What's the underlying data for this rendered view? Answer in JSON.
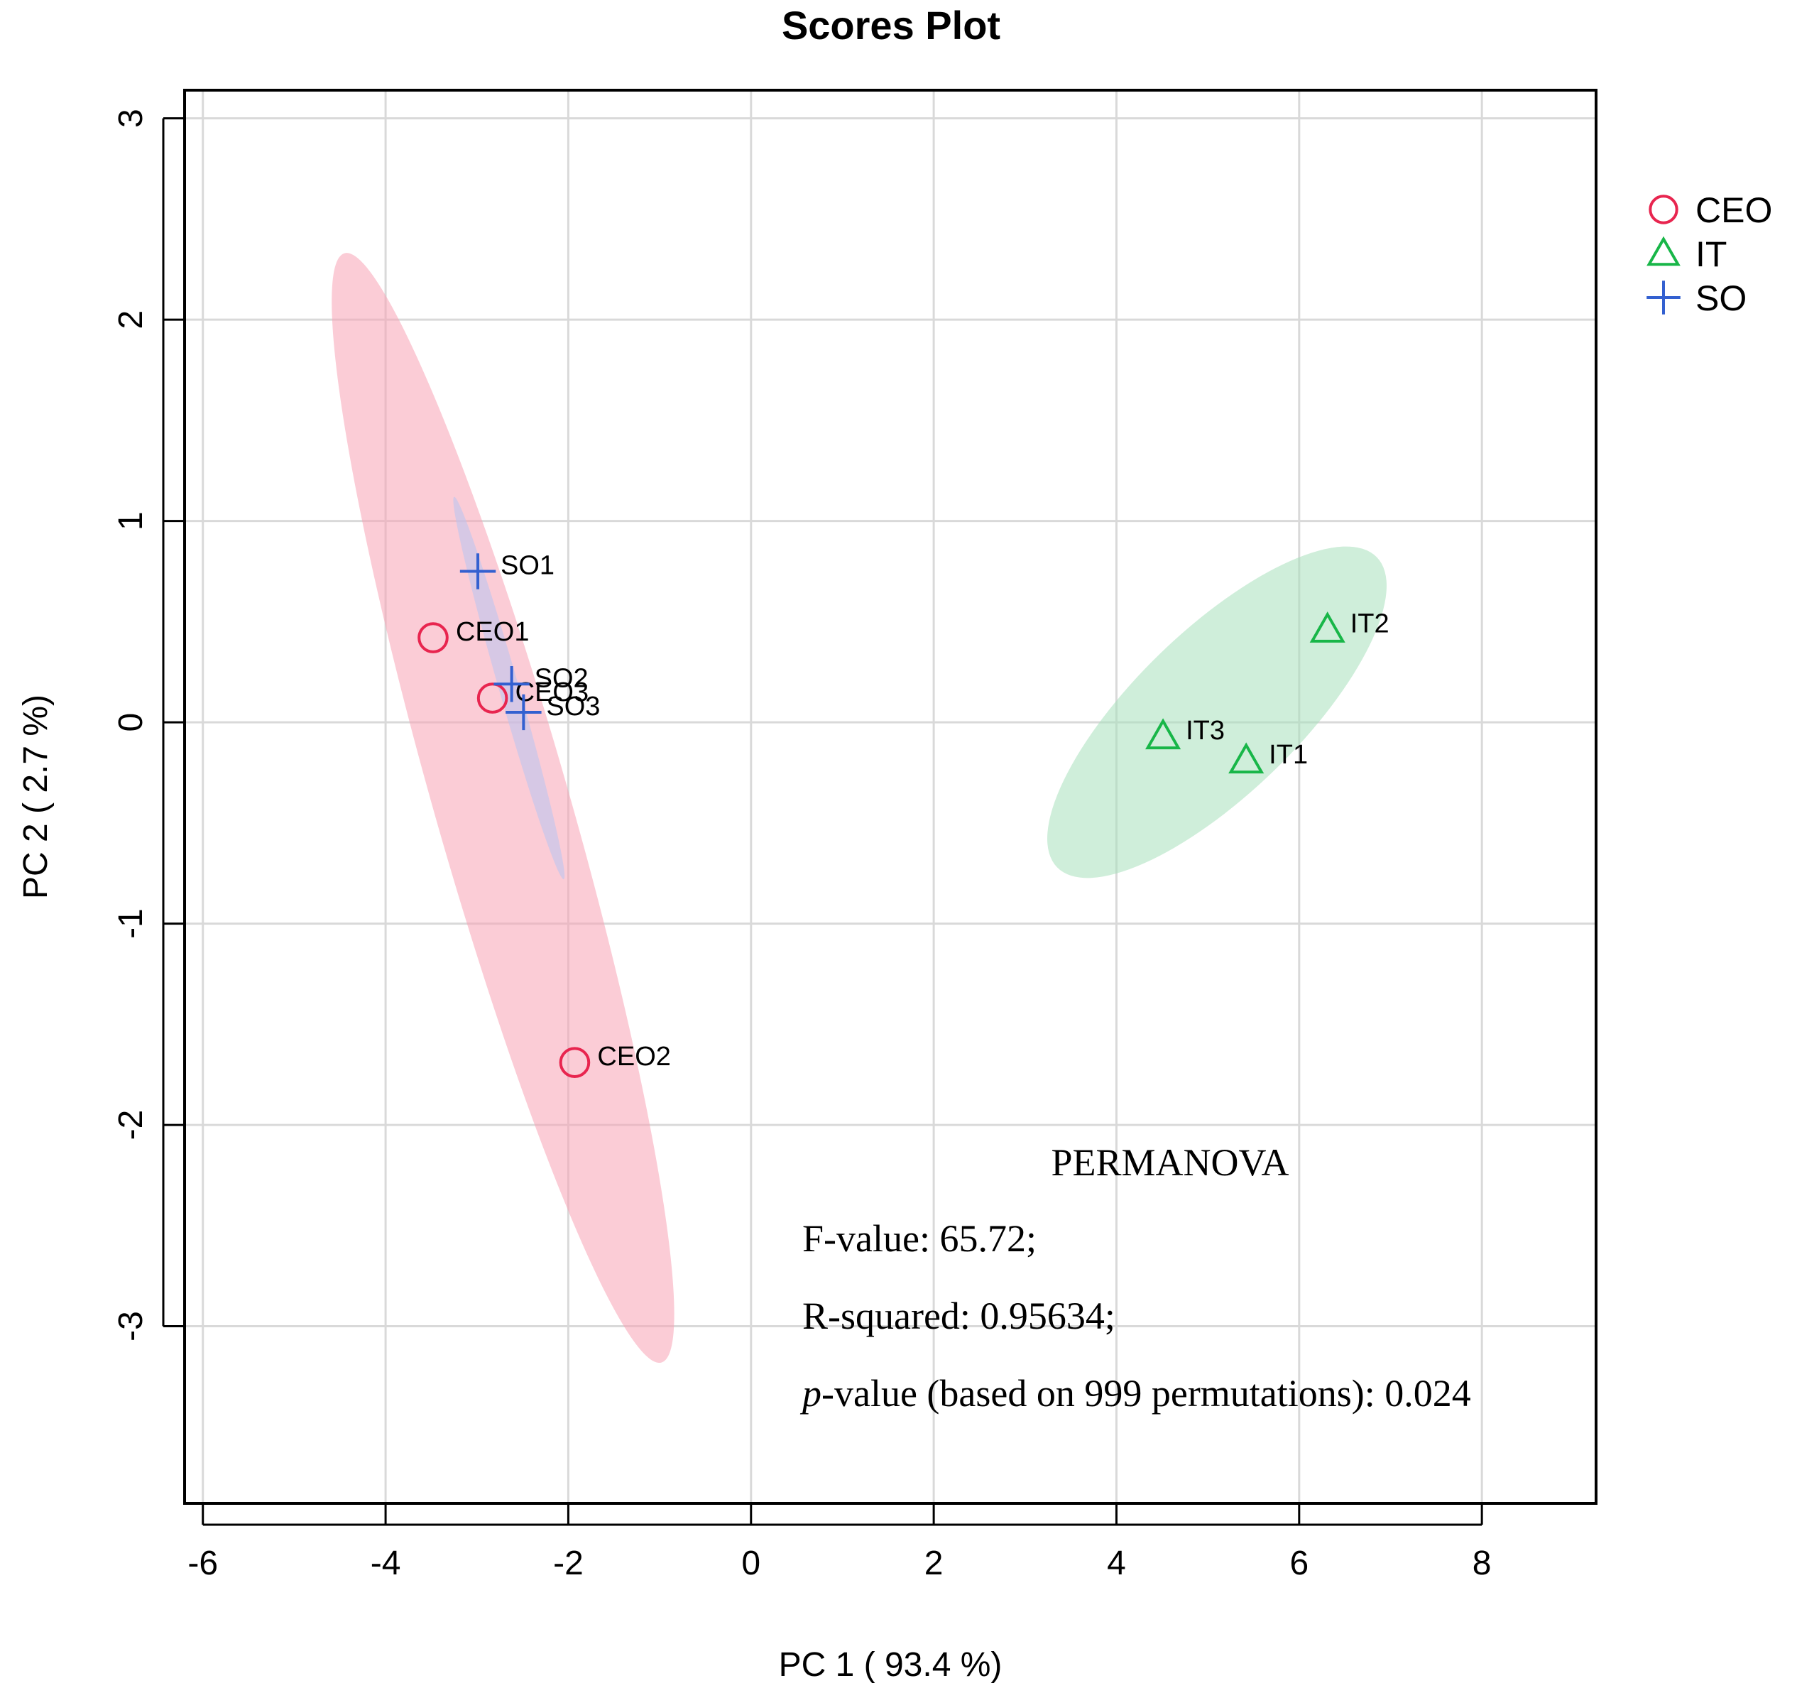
{
  "chart_data": {
    "type": "scatter",
    "title": "Scores Plot",
    "xlabel": "PC 1 ( 93.4 %)",
    "ylabel": "PC 2 ( 2.7 %)",
    "xlim": [
      -6.2,
      9.25
    ],
    "ylim": [
      -3.88,
      3.14
    ],
    "xticks": [
      -6,
      -4,
      -2,
      0,
      2,
      4,
      6,
      8
    ],
    "yticks": [
      -3,
      -2,
      -1,
      0,
      1,
      2,
      3
    ],
    "grid": true,
    "legend_position": "right-top, outside plot",
    "series": [
      {
        "name": "CEO",
        "marker": "circle",
        "color": "#e8254f",
        "ellipse_color": "#f7a3b5",
        "points": [
          {
            "label": "CEO1",
            "x": -3.48,
            "y": 0.42
          },
          {
            "label": "CEO2",
            "x": -1.93,
            "y": -1.69
          },
          {
            "label": "CEO3",
            "x": -2.83,
            "y": 0.12
          }
        ]
      },
      {
        "name": "IT",
        "marker": "triangle",
        "color": "#18b648",
        "ellipse_color": "#a8e0bc",
        "points": [
          {
            "label": "IT1",
            "x": 5.42,
            "y": -0.19
          },
          {
            "label": "IT2",
            "x": 6.31,
            "y": 0.46
          },
          {
            "label": "IT3",
            "x": 4.51,
            "y": -0.07
          }
        ]
      },
      {
        "name": "SO",
        "marker": "plus",
        "color": "#3360d0",
        "ellipse_color": "#b8c4f2",
        "points": [
          {
            "label": "SO1",
            "x": -2.99,
            "y": 0.75
          },
          {
            "label": "SO2",
            "x": -2.62,
            "y": 0.19
          },
          {
            "label": "SO3",
            "x": -2.49,
            "y": 0.05
          }
        ]
      }
    ],
    "annotations": {
      "heading": "PERMANOVA",
      "f_value": "F-value: 65.72;",
      "r_squared": "R-squared: 0.95634;",
      "p_italic": "p",
      "p_rest": "-value (based on 999 permutations): 0.024"
    }
  }
}
